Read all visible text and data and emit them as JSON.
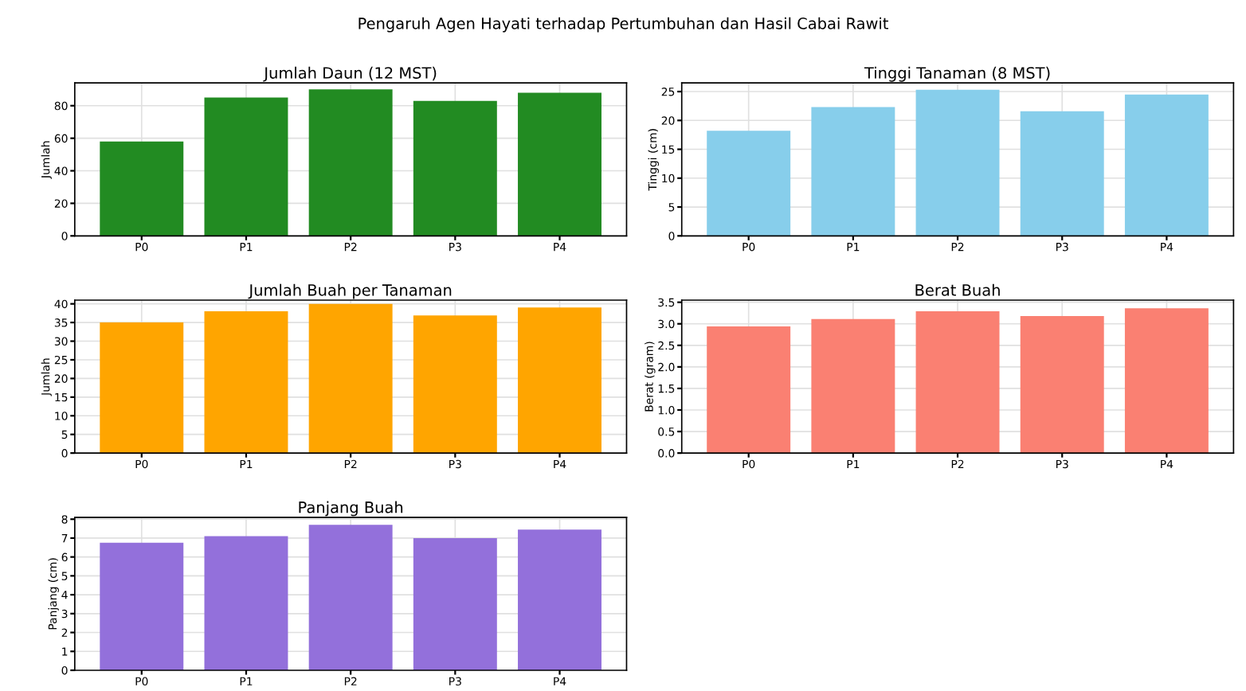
{
  "chart_data": [
    {
      "type": "bar",
      "title": "Jumlah Daun (12 MST)",
      "ylabel": "Jumlah",
      "annotations": [
        "Pengaruh Agen Hayati terhadap Pertumbuhan dan Hasil Cabai Rawit"
      ],
      "categories": [
        "P0",
        "P1",
        "P2",
        "P3",
        "P4"
      ],
      "values": [
        58,
        85,
        90,
        83,
        88
      ],
      "color": "#228b22",
      "ylim": [
        0,
        94
      ],
      "yticks": [
        0,
        20,
        40,
        60,
        80
      ],
      "grid": true
    },
    {
      "type": "bar",
      "title": "Tinggi Tanaman (8 MST)",
      "ylabel": "Tinggi (cm)",
      "categories": [
        "P0",
        "P1",
        "P2",
        "P3",
        "P4"
      ],
      "values": [
        18.2,
        22.3,
        25.3,
        21.6,
        24.5
      ],
      "color": "#87ceeb",
      "ylim": [
        0,
        26.5
      ],
      "yticks": [
        0,
        5,
        10,
        15,
        20,
        25
      ],
      "grid": true
    },
    {
      "type": "bar",
      "title": "Jumlah Buah per Tanaman",
      "ylabel": "Jumlah",
      "categories": [
        "P0",
        "P1",
        "P2",
        "P3",
        "P4"
      ],
      "values": [
        35.0,
        38.0,
        40.0,
        36.9,
        39.0
      ],
      "color": "#ffa500",
      "ylim": [
        0,
        41
      ],
      "yticks": [
        0,
        5,
        10,
        15,
        20,
        25,
        30,
        35,
        40
      ],
      "grid": true
    },
    {
      "type": "bar",
      "title": "Berat Buah",
      "ylabel": "Berat (gram)",
      "categories": [
        "P0",
        "P1",
        "P2",
        "P3",
        "P4"
      ],
      "values": [
        2.94,
        3.11,
        3.29,
        3.18,
        3.36
      ],
      "color": "#fa8072",
      "ylim": [
        0,
        3.55
      ],
      "yticks": [
        {
          "value": 0,
          "label": "0.0"
        },
        {
          "value": 0.5,
          "label": "0.5"
        },
        {
          "value": 1,
          "label": "1.0"
        },
        {
          "value": 1.5,
          "label": "1.5"
        },
        {
          "value": 2,
          "label": "2.0"
        },
        {
          "value": 2.5,
          "label": "2.5"
        },
        {
          "value": 3,
          "label": "3.0"
        },
        {
          "value": 3.5,
          "label": "3.5"
        }
      ],
      "grid": true
    },
    {
      "type": "bar",
      "title": "Panjang Buah",
      "ylabel": "Panjang (cm)",
      "categories": [
        "P0",
        "P1",
        "P2",
        "P3",
        "P4"
      ],
      "values": [
        6.75,
        7.1,
        7.7,
        7.0,
        7.45
      ],
      "color": "#9370db",
      "ylim": [
        0,
        8.1
      ],
      "yticks": [
        0,
        1,
        2,
        3,
        4,
        5,
        6,
        7,
        8
      ],
      "grid": true
    }
  ]
}
